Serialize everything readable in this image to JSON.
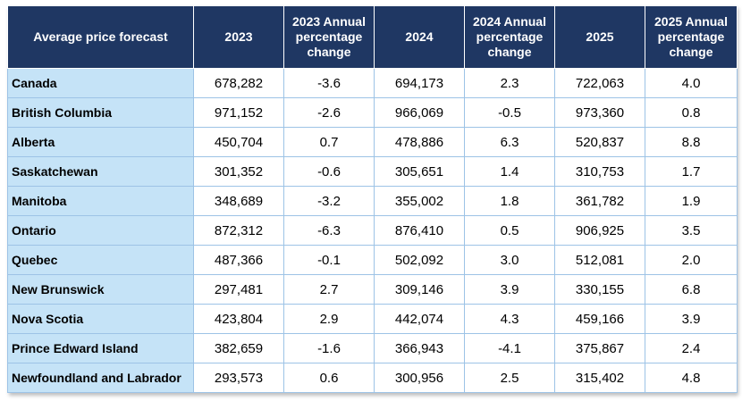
{
  "chart_data": {
    "type": "table",
    "columns": [
      "Average price forecast",
      "2023",
      "2023 Annual percentage change",
      "2024",
      "2024 Annual percentage change",
      "2025",
      "2025 Annual percentage change"
    ],
    "rows": [
      [
        "Canada",
        "678,282",
        "-3.6",
        "694,173",
        "2.3",
        "722,063",
        "4.0"
      ],
      [
        "British Columbia",
        "971,152",
        "-2.6",
        "966,069",
        "-0.5",
        "973,360",
        "0.8"
      ],
      [
        "Alberta",
        "450,704",
        "0.7",
        "478,886",
        "6.3",
        "520,837",
        "8.8"
      ],
      [
        "Saskatchewan",
        "301,352",
        "-0.6",
        "305,651",
        "1.4",
        "310,753",
        "1.7"
      ],
      [
        "Manitoba",
        "348,689",
        "-3.2",
        "355,002",
        "1.8",
        "361,782",
        "1.9"
      ],
      [
        "Ontario",
        "872,312",
        "-6.3",
        "876,410",
        "0.5",
        "906,925",
        "3.5"
      ],
      [
        "Quebec",
        "487,366",
        "-0.1",
        "502,092",
        "3.0",
        "512,081",
        "2.0"
      ],
      [
        "New Brunswick",
        "297,481",
        "2.7",
        "309,146",
        "3.9",
        "330,155",
        "6.8"
      ],
      [
        "Nova Scotia",
        "423,804",
        "2.9",
        "442,074",
        "4.3",
        "459,166",
        "3.9"
      ],
      [
        "Prince Edward Island",
        "382,659",
        "-1.6",
        "366,943",
        "-4.1",
        "375,867",
        "2.4"
      ],
      [
        "Newfoundland and Labrador",
        "293,573",
        "0.6",
        "300,956",
        "2.5",
        "315,402",
        "4.8"
      ]
    ]
  },
  "colors": {
    "header_bg": "#1f3763",
    "header_text": "#ffffff",
    "name_cell_bg": "#c5e3f7",
    "border": "#9dc3e6"
  }
}
